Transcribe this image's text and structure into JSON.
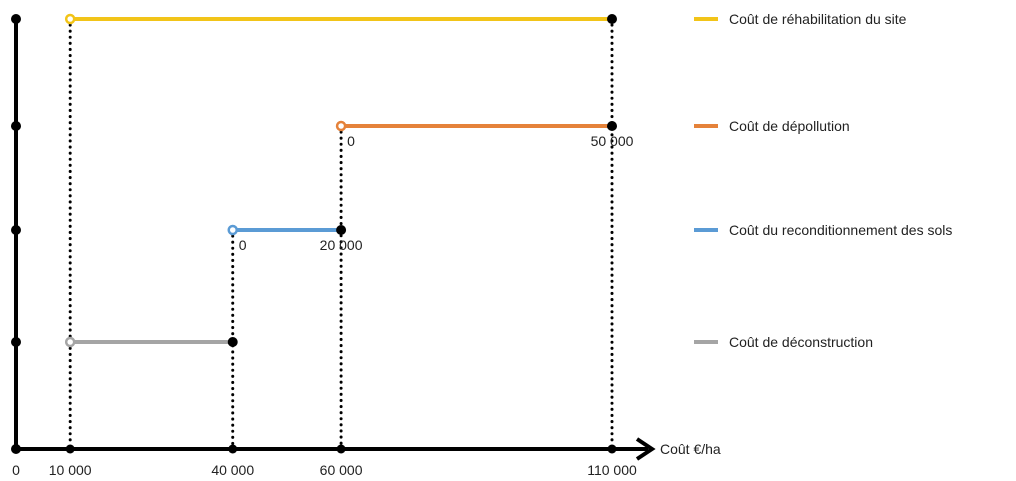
{
  "chart_data": {
    "type": "range-bar",
    "x_unit_label": "Coût €/ha",
    "xlim": [
      0,
      110000
    ],
    "x_ticks": [
      {
        "value": 0,
        "label": "0"
      },
      {
        "value": 10000,
        "label": "10 000"
      },
      {
        "value": 40000,
        "label": "40 000"
      },
      {
        "value": 60000,
        "label": "60 000"
      },
      {
        "value": 110000,
        "label": "110 000"
      }
    ],
    "legend_position": "right",
    "series": [
      {
        "name": "Coût de réhabilitation du site",
        "color": "#F2C418",
        "start": 10000,
        "end": 110000,
        "start_label": "",
        "end_label": ""
      },
      {
        "name": "Coût de dépollution",
        "color": "#E5823A",
        "start": 60000,
        "end": 110000,
        "start_label": "0",
        "end_label": "50 000"
      },
      {
        "name": "Coût du reconditionnement des sols",
        "color": "#5B9BD5",
        "start": 40000,
        "end": 60000,
        "start_label": "0",
        "end_label": "20 000"
      },
      {
        "name": "Coût de déconstruction",
        "color": "#A5A5A5",
        "start": 10000,
        "end": 40000,
        "start_label": "",
        "end_label": ""
      }
    ]
  }
}
